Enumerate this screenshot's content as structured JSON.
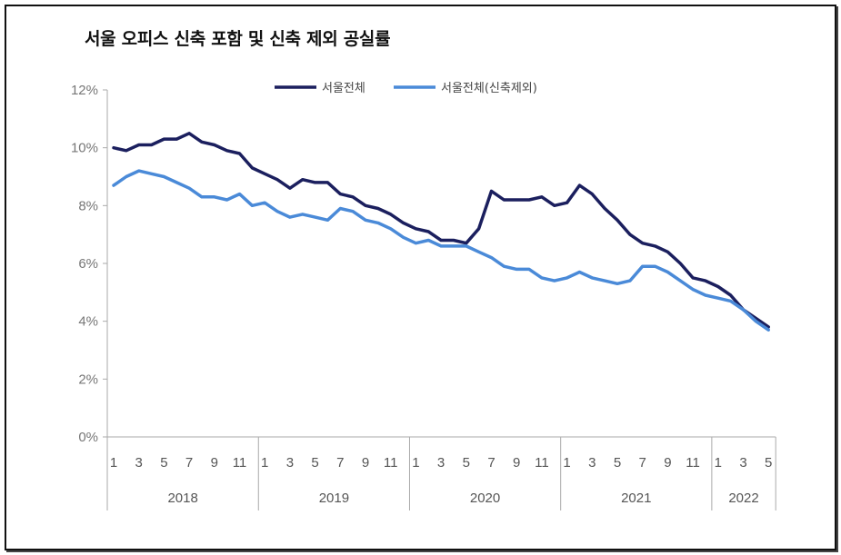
{
  "title": "서울 오피스 신축 포함 및 신축 제외 공실률",
  "colors": {
    "series_total": "#1b1f5e",
    "series_excl": "#4a8ad8",
    "axis": "#aaaaaa"
  },
  "chart_data": {
    "type": "line",
    "title": "서울 오피스 신축 포함 및 신축 제외 공실률",
    "xlabel": "",
    "ylabel": "",
    "ylim": [
      0,
      12
    ],
    "yticks": [
      0,
      2,
      4,
      6,
      8,
      10,
      12
    ],
    "ytick_labels": [
      "0%",
      "2%",
      "4%",
      "6%",
      "8%",
      "10%",
      "12%"
    ],
    "grid": false,
    "legend_position": "top-center",
    "month_tick_labels": [
      "1",
      "3",
      "5",
      "7",
      "9",
      "11",
      "1",
      "3",
      "5",
      "7",
      "9",
      "11",
      "1",
      "3",
      "5",
      "7",
      "9",
      "11",
      "1",
      "3",
      "5",
      "7",
      "9",
      "11",
      "1",
      "3",
      "5"
    ],
    "year_groups": [
      {
        "label": "2018",
        "months": 12
      },
      {
        "label": "2019",
        "months": 12
      },
      {
        "label": "2020",
        "months": 12
      },
      {
        "label": "2021",
        "months": 12
      },
      {
        "label": "2022",
        "months": 5
      }
    ],
    "series": [
      {
        "name": "서울전체",
        "values": [
          10.0,
          9.9,
          10.1,
          10.1,
          10.3,
          10.3,
          10.5,
          10.2,
          10.1,
          9.9,
          9.8,
          9.3,
          9.1,
          8.9,
          8.6,
          8.9,
          8.8,
          8.8,
          8.4,
          8.3,
          8.0,
          7.9,
          7.7,
          7.4,
          7.2,
          7.1,
          6.8,
          6.8,
          6.7,
          7.2,
          8.5,
          8.2,
          8.2,
          8.2,
          8.3,
          8.0,
          8.1,
          8.7,
          8.4,
          7.9,
          7.5,
          7.0,
          6.7,
          6.6,
          6.4,
          6.0,
          5.5,
          5.4,
          5.2,
          4.9,
          4.4,
          4.1,
          3.8
        ]
      },
      {
        "name": "서울전체(신축제외)",
        "values": [
          8.7,
          9.0,
          9.2,
          9.1,
          9.0,
          8.8,
          8.6,
          8.3,
          8.3,
          8.2,
          8.4,
          8.0,
          8.1,
          7.8,
          7.6,
          7.7,
          7.6,
          7.5,
          7.9,
          7.8,
          7.5,
          7.4,
          7.2,
          6.9,
          6.7,
          6.8,
          6.6,
          6.6,
          6.6,
          6.4,
          6.2,
          5.9,
          5.8,
          5.8,
          5.5,
          5.4,
          5.5,
          5.7,
          5.5,
          5.4,
          5.3,
          5.4,
          5.9,
          5.9,
          5.7,
          5.4,
          5.1,
          4.9,
          4.8,
          4.7,
          4.4,
          4.0,
          3.7
        ]
      }
    ]
  }
}
